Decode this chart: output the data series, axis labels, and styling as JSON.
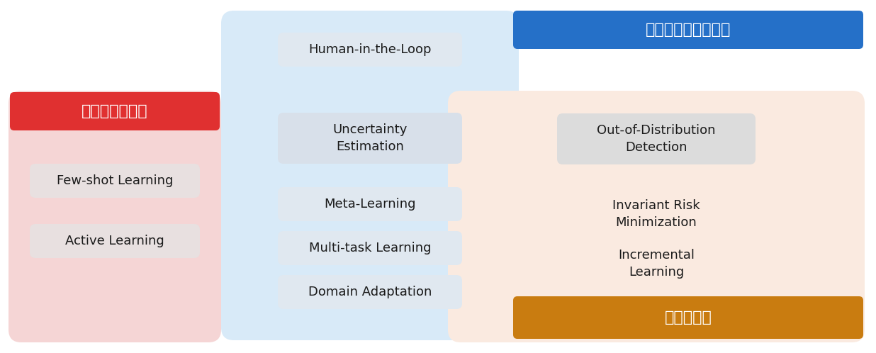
{
  "fig_width": 12.36,
  "fig_height": 4.98,
  "dpi": 100,
  "bg_color": "#ffffff",
  "col1_header": "データの少なさ",
  "col2_header": "メカニズムの複雑さ",
  "col3_footer": "分布の差異",
  "col1_header_bg": "#e03030",
  "col2_header_bg": "#2570c8",
  "col3_footer_bg": "#c97c10",
  "col1_header_text_color": "#ffffff",
  "col2_header_text_color": "#ffffff",
  "col3_footer_text_color": "#ffffff",
  "col1_bg": "#f5d5d5",
  "col2_bg": "#d8eaf8",
  "col3_bg": "#faeae0",
  "item_text_color": "#1a1a1a",
  "col1_items": [
    "Few-shot Learning",
    "Active Learning"
  ],
  "col2_items_single": [
    "Human-in-the-Loop",
    "Meta-Learning",
    "Multi-task Learning",
    "Domain Adaptation"
  ],
  "col2_item_double": "Uncertainty\nEstimation",
  "col3_item_ood": "Out-of-Distribution\nDetection",
  "col3_item_irm": "Invariant Risk\nMinimization",
  "col3_item_il": "Incremental\nLearning",
  "item_bg_col1": "#e8e0e0",
  "item_bg_col2_top": "#e0e8f0",
  "item_bg_col2_mid": "#d8e0ea",
  "item_bg_col2_lower": "#e0e8f0",
  "item_bg_ood": "#dcdcdc",
  "item_bg_col3_lower": "#f0e8e0"
}
